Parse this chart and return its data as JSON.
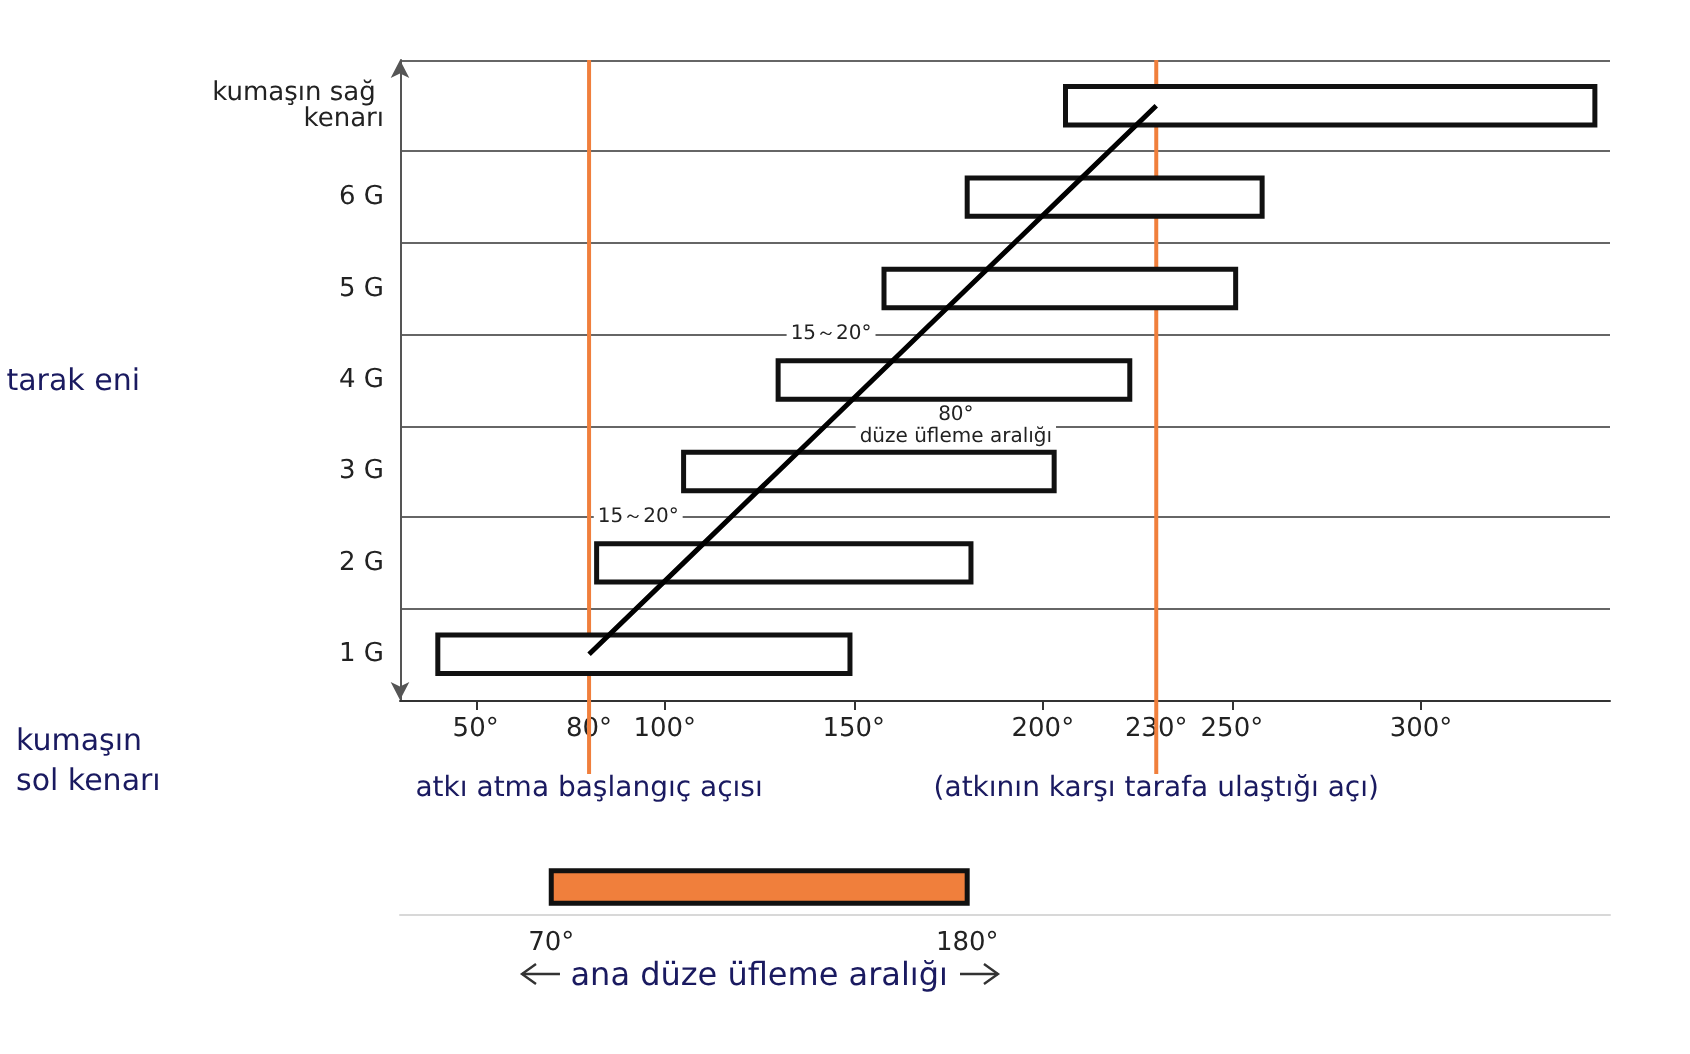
{
  "chart_data": [
    {
      "type": "bar",
      "orientation": "horizontal",
      "categories": [
        "kumaşın sağ kenarı",
        "6 G",
        "5 G",
        "4 G",
        "3 G",
        "2 G",
        "1 G"
      ],
      "series": [
        {
          "type": "bar",
          "color": "#ffffff",
          "values": [
            140,
            78,
            93,
            93,
            98,
            99,
            109
          ],
          "base": [
            206,
            180,
            158,
            130,
            105,
            82,
            40
          ]
        },
        {
          "type": "line",
          "color": "#000000",
          "values": [
            230,
            205,
            180,
            155,
            130,
            105,
            80
          ]
        }
      ],
      "xlim": [
        30,
        350
      ],
      "xticks": [
        {
          "value": 50,
          "label": "50°"
        },
        {
          "value": 80,
          "label": "80°"
        },
        {
          "value": 100,
          "label": "100°"
        },
        {
          "value": 150,
          "label": "150°"
        },
        {
          "value": 200,
          "label": "200°"
        },
        {
          "value": 230,
          "label": "230°"
        },
        {
          "value": 250,
          "label": "250°"
        },
        {
          "value": 300,
          "label": "300°"
        }
      ],
      "ylabel": "tarak eni",
      "grid": "y",
      "marker": "none",
      "ref_lines": [
        {
          "axis": "x",
          "value": 80,
          "label": "atkı atma başlangıç açısı",
          "color": "#f07f3c"
        },
        {
          "axis": "x",
          "value": 230,
          "label": "(atkının karşı tarafa ulaştığı açı)",
          "color": "#f07f3c"
        }
      ],
      "annotations": [
        "15～20°",
        "80°\ndüze üfleme aralığı",
        "15～20°",
        "kumaşın sol kenarı"
      ]
    },
    {
      "type": "bar",
      "orientation": "horizontal",
      "categories": [
        null
      ],
      "values": [
        110
      ],
      "base": [
        70
      ],
      "color": "#f07f3c",
      "xlim": [
        30,
        350
      ],
      "xticks": [
        {
          "value": 70,
          "label": "70°"
        },
        {
          "value": 180,
          "label": "180°"
        }
      ],
      "xlabel": "ana düze üfleme aralığı"
    }
  ]
}
